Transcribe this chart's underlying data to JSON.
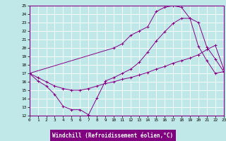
{
  "bg_color": "#c0e8e8",
  "grid_color": "#ffffff",
  "line_color": "#880088",
  "xlabel": "Windchill (Refroidissement éolien,°C)",
  "xlabel_bg": "#800080",
  "xlabel_fg": "#ffffff",
  "xlim": [
    0,
    23
  ],
  "ylim": [
    12,
    25
  ],
  "xticks": [
    0,
    1,
    2,
    3,
    4,
    5,
    6,
    7,
    8,
    9,
    10,
    11,
    12,
    13,
    14,
    15,
    16,
    17,
    18,
    19,
    20,
    21,
    22,
    23
  ],
  "yticks": [
    12,
    13,
    14,
    15,
    16,
    17,
    18,
    19,
    20,
    21,
    22,
    23,
    24,
    25
  ],
  "line1_x": [
    0,
    1,
    2,
    3,
    4,
    5,
    6,
    7,
    8,
    9,
    10,
    11,
    12,
    13,
    14,
    15,
    16,
    17,
    18,
    19,
    20,
    21,
    22,
    23
  ],
  "line1_y": [
    17.0,
    16.1,
    15.5,
    14.5,
    13.1,
    12.7,
    12.7,
    12.1,
    14.1,
    16.1,
    16.5,
    17.0,
    17.5,
    18.3,
    19.5,
    20.8,
    21.9,
    22.9,
    23.5,
    23.5,
    20.2,
    18.5,
    17.0,
    17.2
  ],
  "line2_x": [
    0,
    1,
    2,
    3,
    4,
    5,
    6,
    7,
    8,
    9,
    10,
    11,
    12,
    13,
    14,
    15,
    16,
    17,
    18,
    19,
    20,
    21,
    22,
    23
  ],
  "line2_y": [
    17.0,
    16.5,
    16.0,
    15.5,
    15.2,
    15.0,
    15.0,
    15.2,
    15.5,
    15.8,
    16.0,
    16.3,
    16.5,
    16.8,
    17.1,
    17.5,
    17.8,
    18.2,
    18.5,
    18.8,
    19.2,
    19.8,
    20.3,
    17.5
  ],
  "line3_x": [
    0,
    10,
    11,
    12,
    13,
    14,
    15,
    16,
    17,
    18,
    19,
    20,
    21,
    22,
    23
  ],
  "line3_y": [
    17.0,
    20.0,
    20.5,
    21.5,
    22.0,
    22.5,
    24.3,
    24.8,
    25.0,
    24.8,
    23.5,
    23.0,
    20.1,
    18.7,
    17.2
  ]
}
